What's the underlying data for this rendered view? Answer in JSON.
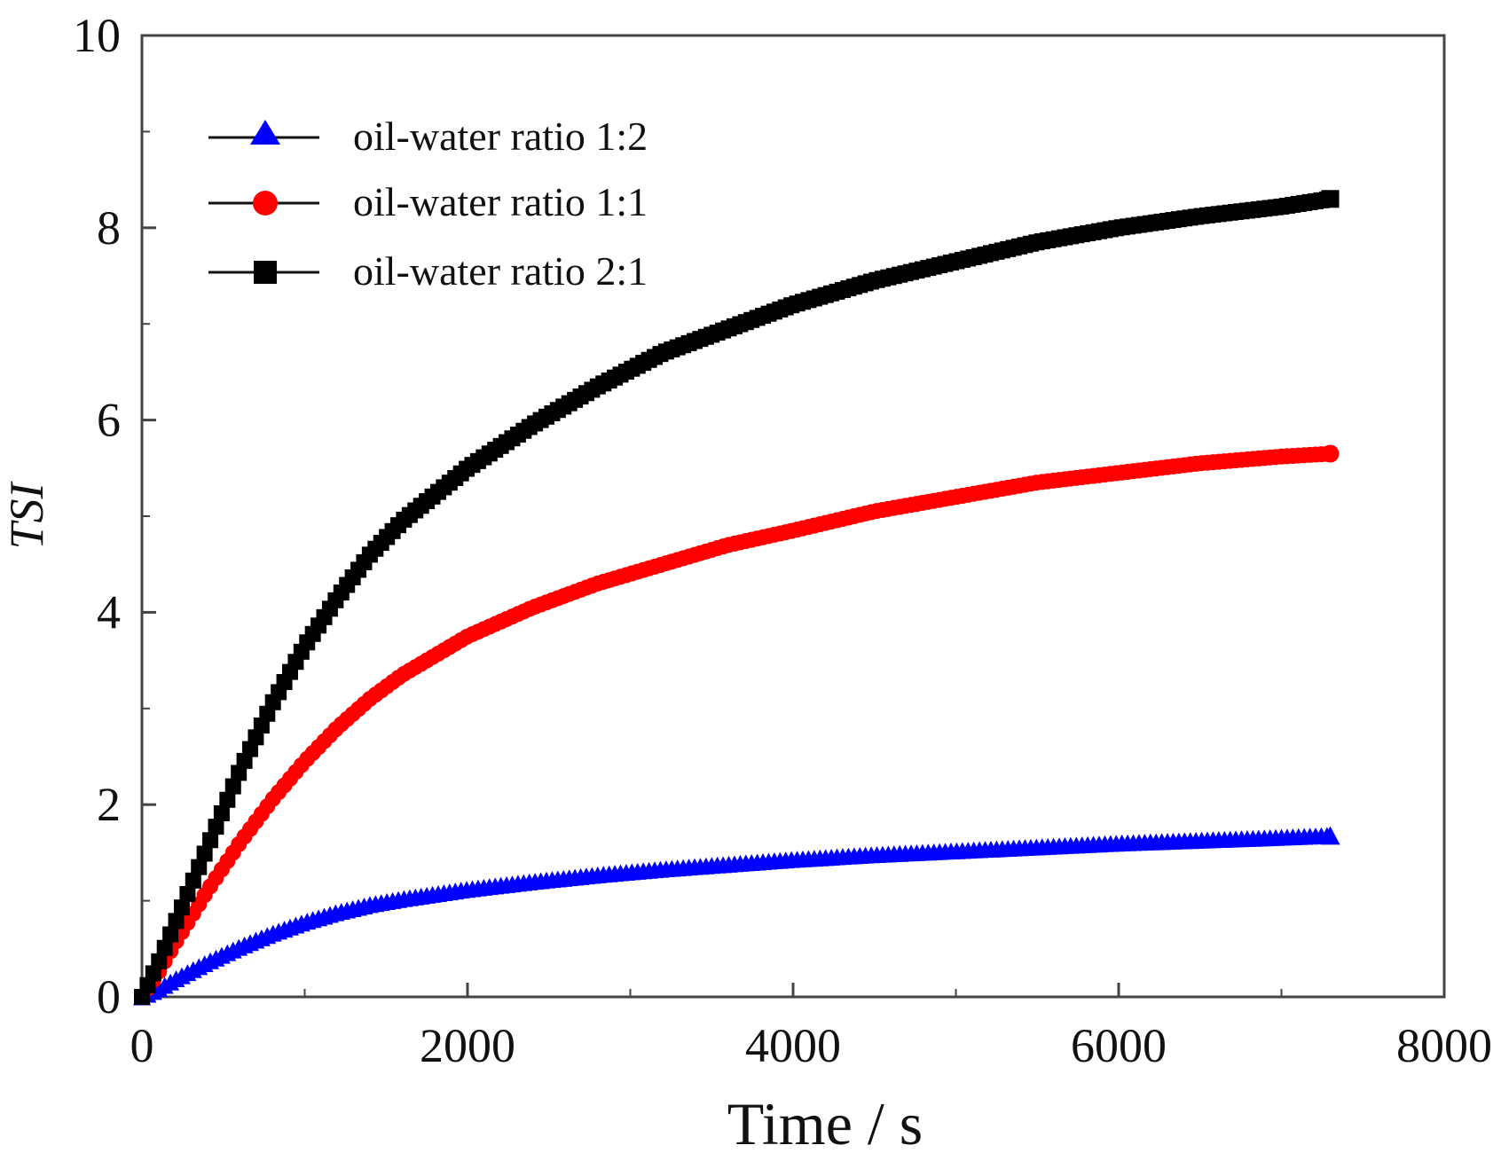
{
  "chart_data": {
    "type": "scatter",
    "title": "",
    "xlabel": "Time / s",
    "ylabel": "TSI",
    "xlim": [
      0,
      8000
    ],
    "ylim": [
      0,
      10
    ],
    "x_major_ticks": [
      0,
      2000,
      4000,
      6000,
      8000
    ],
    "x_tick_labels": [
      "0",
      "2000",
      "4000",
      "6000",
      "8000"
    ],
    "y_major_ticks": [
      0,
      2,
      4,
      6,
      8,
      10
    ],
    "y_tick_labels": [
      "0",
      "2",
      "4",
      "6",
      "8",
      "10"
    ],
    "grid": false,
    "legend_position": "top-left",
    "series": [
      {
        "name": "oil-water ratio 1:2",
        "marker": "triangle",
        "color": "#0000ff",
        "x": [
          0,
          100,
          200,
          400,
          600,
          800,
          1000,
          1200,
          1400,
          1600,
          2000,
          2400,
          2800,
          3200,
          3600,
          4000,
          4500,
          5000,
          5500,
          6000,
          6500,
          7000,
          7300
        ],
        "y": [
          0.0,
          0.08,
          0.18,
          0.36,
          0.52,
          0.66,
          0.78,
          0.88,
          0.96,
          1.02,
          1.12,
          1.2,
          1.27,
          1.33,
          1.38,
          1.43,
          1.48,
          1.52,
          1.56,
          1.6,
          1.63,
          1.66,
          1.68
        ]
      },
      {
        "name": "oil-water ratio 1:1",
        "marker": "circle",
        "color": "#ff0000",
        "x": [
          0,
          100,
          200,
          400,
          600,
          800,
          1000,
          1200,
          1400,
          1600,
          2000,
          2400,
          2800,
          3200,
          3600,
          4000,
          4500,
          5000,
          5500,
          6000,
          6500,
          7000,
          7300
        ],
        "y": [
          0.0,
          0.25,
          0.55,
          1.1,
          1.6,
          2.05,
          2.45,
          2.8,
          3.1,
          3.35,
          3.75,
          4.05,
          4.3,
          4.5,
          4.7,
          4.85,
          5.05,
          5.2,
          5.35,
          5.45,
          5.55,
          5.62,
          5.65
        ]
      },
      {
        "name": "oil-water ratio 2:1",
        "marker": "square",
        "color": "#000000",
        "x": [
          0,
          100,
          200,
          400,
          600,
          800,
          1000,
          1200,
          1400,
          1600,
          2000,
          2400,
          2800,
          3200,
          3600,
          4000,
          4500,
          5000,
          5500,
          6000,
          6500,
          7000,
          7300
        ],
        "y": [
          0.0,
          0.35,
          0.75,
          1.55,
          2.35,
          3.05,
          3.65,
          4.15,
          4.6,
          4.95,
          5.5,
          5.95,
          6.35,
          6.7,
          6.95,
          7.2,
          7.45,
          7.65,
          7.85,
          8.0,
          8.12,
          8.22,
          8.3
        ]
      }
    ]
  }
}
